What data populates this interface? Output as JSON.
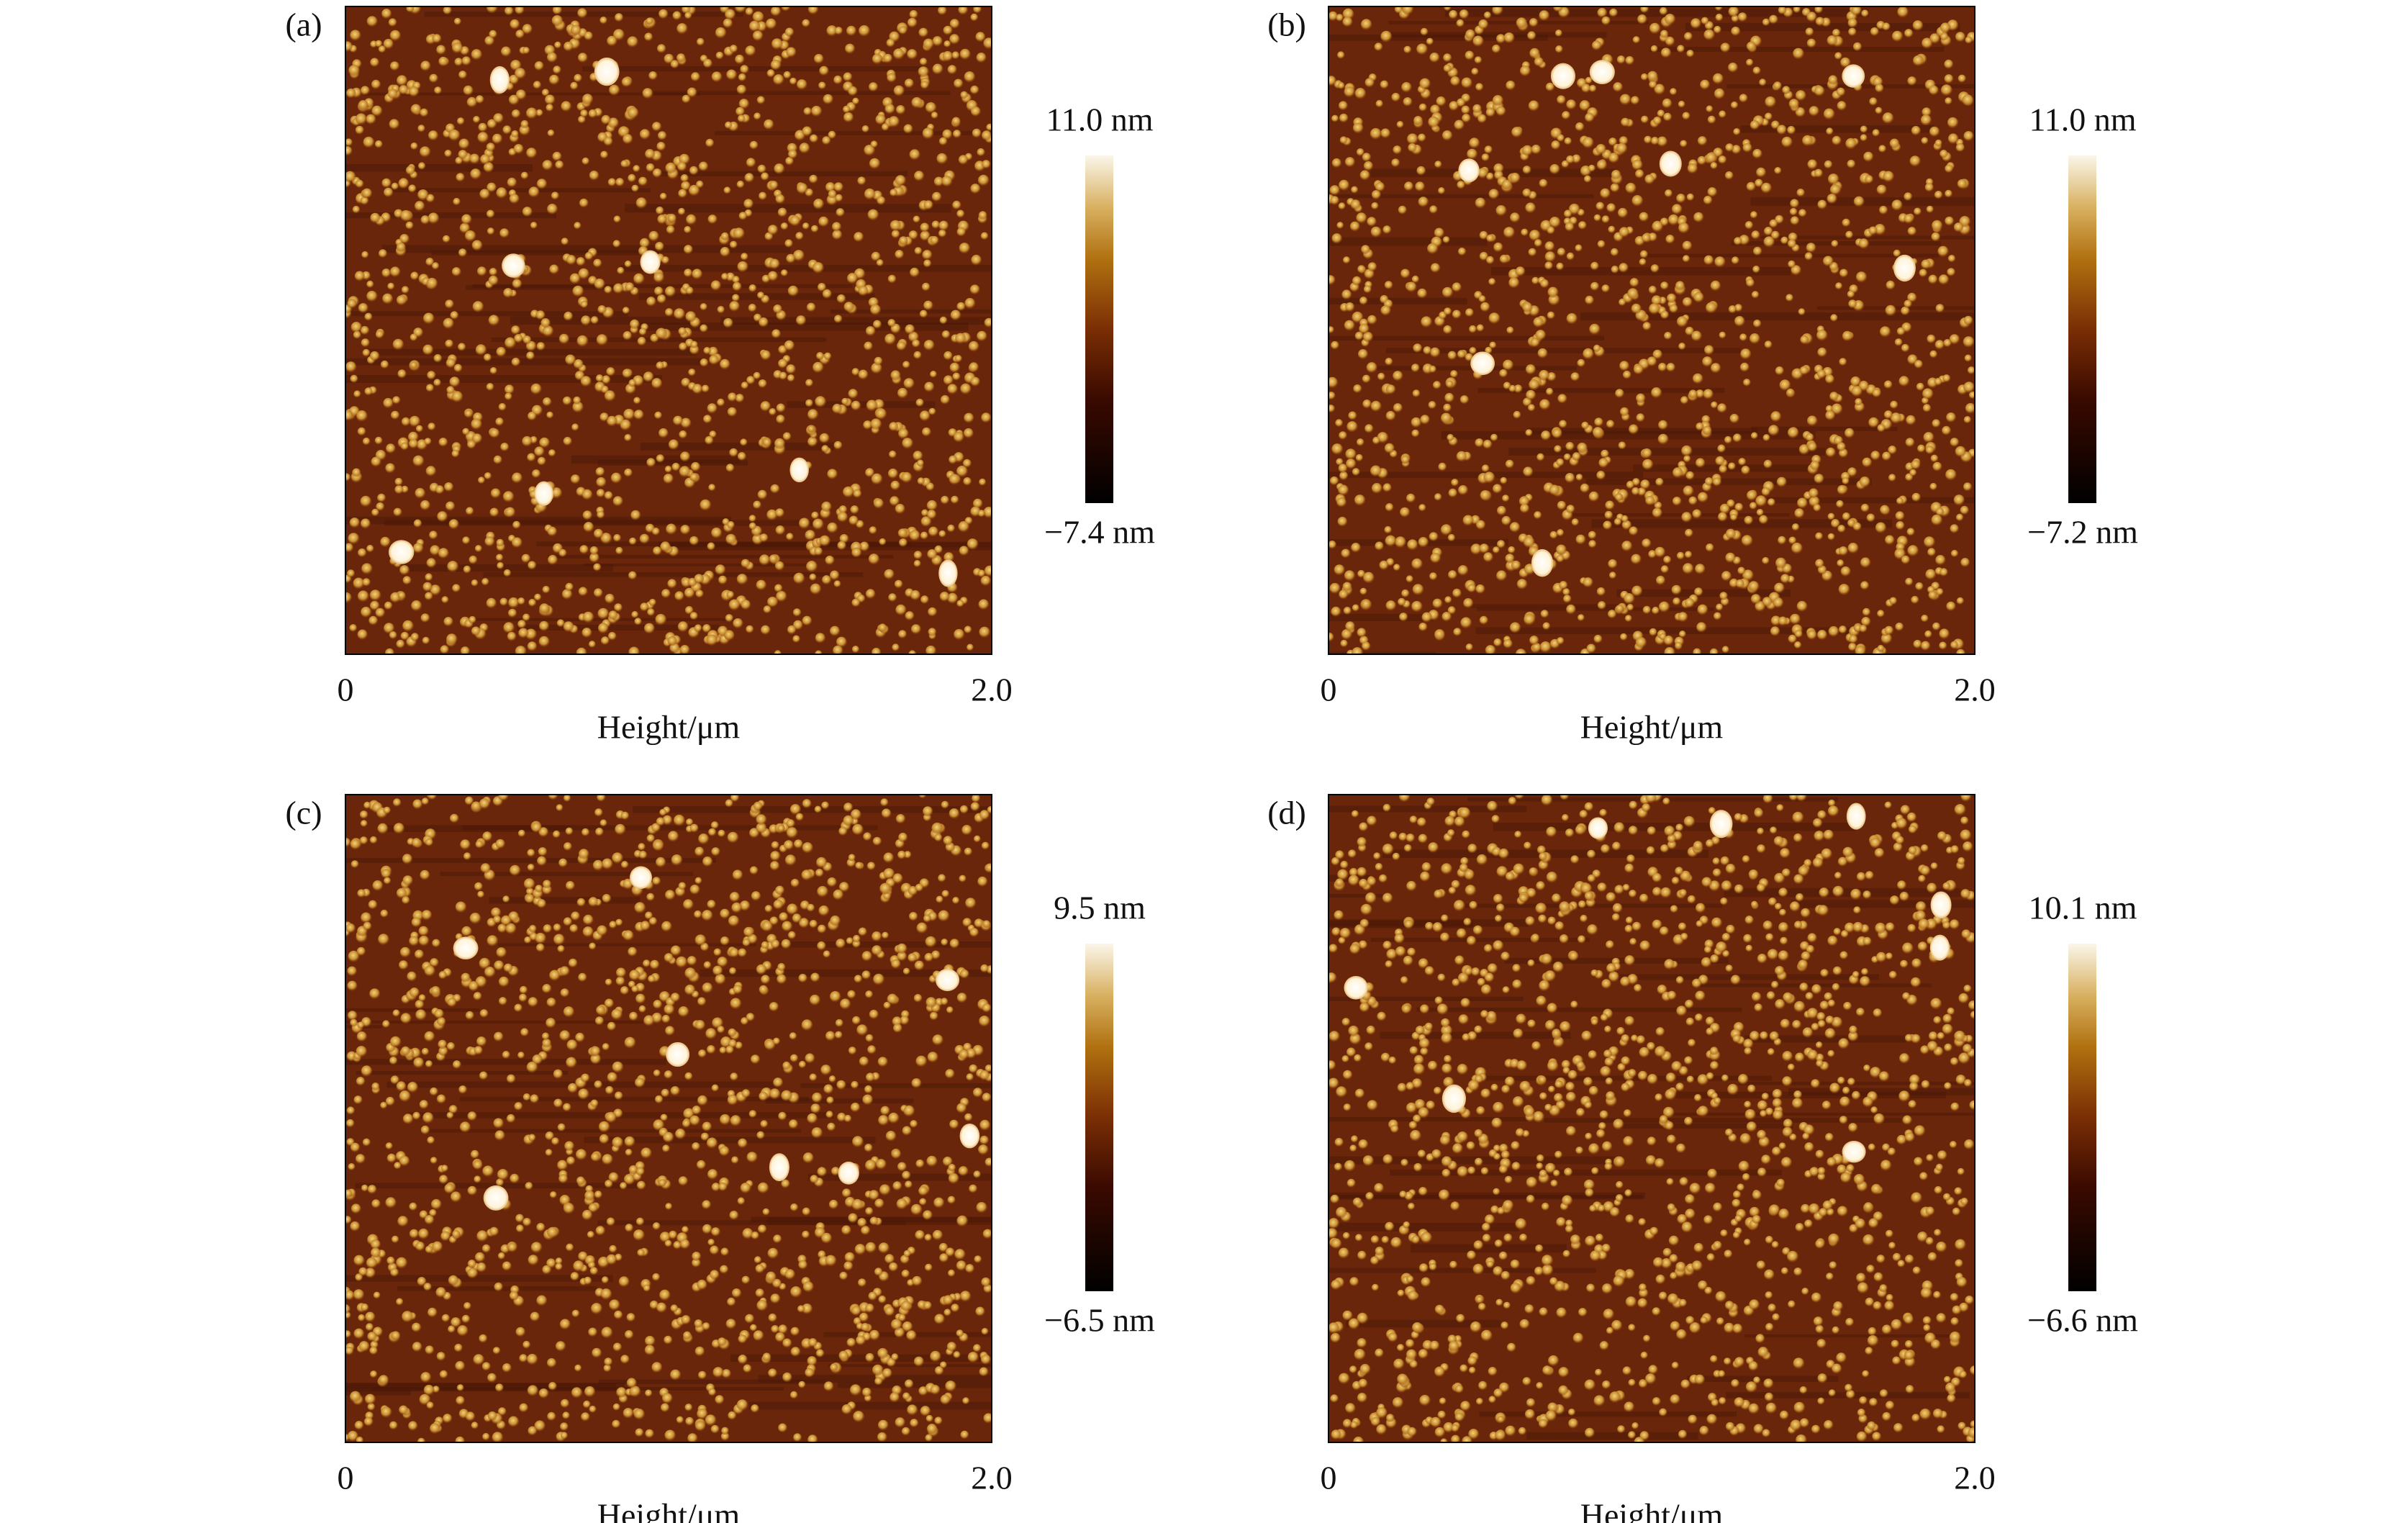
{
  "panels": [
    {
      "label": "(a)",
      "colorbar_max": "11.0 nm",
      "colorbar_min": "−7.4 nm",
      "x_tick_start": "0",
      "x_tick_end": "2.0",
      "x_label": "Height/μm"
    },
    {
      "label": "(b)",
      "colorbar_max": "11.0 nm",
      "colorbar_min": "−7.2 nm",
      "x_tick_start": "0",
      "x_tick_end": "2.0",
      "x_label": "Height/μm"
    },
    {
      "label": "(c)",
      "colorbar_max": "9.5 nm",
      "colorbar_min": "−6.5 nm",
      "x_tick_start": "0",
      "x_tick_end": "2.0",
      "x_label": "Height/μm"
    },
    {
      "label": "(d)",
      "colorbar_max": "10.1 nm",
      "colorbar_min": "−6.6 nm",
      "x_tick_start": "0",
      "x_tick_end": "2.0",
      "x_label": "Height/μm"
    }
  ]
}
